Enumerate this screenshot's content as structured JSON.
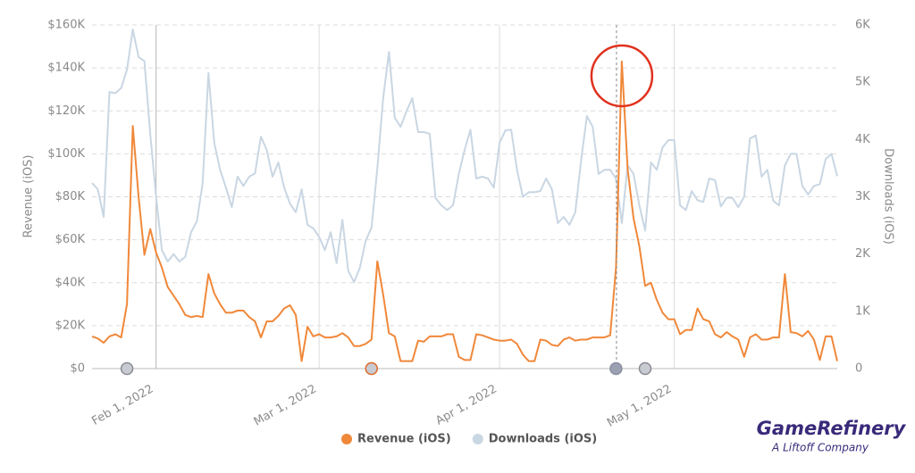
{
  "chart_data": {
    "type": "line",
    "ylabel": "Revenue (iOS)",
    "y2label": "Downloads (iOS)",
    "ylim": [
      0,
      160000
    ],
    "yticks": [
      {
        "value": 0,
        "label": "$0"
      },
      {
        "value": 20000,
        "label": "$20K"
      },
      {
        "value": 40000,
        "label": "$40K"
      },
      {
        "value": 60000,
        "label": "$60K"
      },
      {
        "value": 80000,
        "label": "$80K"
      },
      {
        "value": 100000,
        "label": "$100K"
      },
      {
        "value": 120000,
        "label": "$120K"
      },
      {
        "value": 140000,
        "label": "$140K"
      },
      {
        "value": 160000,
        "label": "$160K"
      }
    ],
    "y2lim": [
      0,
      6000
    ],
    "y2ticks": [
      0,
      {
        "value": 1000,
        "label": "1K"
      },
      {
        "value": 2000,
        "label": "2K"
      },
      {
        "value": 3000,
        "label": "3K"
      },
      {
        "value": 4000,
        "label": "4K"
      },
      {
        "value": 5000,
        "label": "5K"
      },
      {
        "value": 6000,
        "label": "6K"
      }
    ],
    "xlim": [
      "2022-01-21",
      "2022-05-29"
    ],
    "xticks": [
      {
        "value": "2022-02-01",
        "label": "Feb 1, 2022"
      },
      {
        "value": "2022-03-01",
        "label": "Mar 1, 2022"
      },
      {
        "value": "2022-04-01",
        "label": "Apr 1, 2022"
      },
      {
        "value": "2022-05-01",
        "label": "May 1, 2022"
      }
    ],
    "grid": true,
    "x": [
      "2022-01-21",
      "2022-01-22",
      "2022-01-23",
      "2022-01-24",
      "2022-01-25",
      "2022-01-26",
      "2022-01-27",
      "2022-01-28",
      "2022-01-29",
      "2022-01-30",
      "2022-01-31",
      "2022-02-01",
      "2022-02-02",
      "2022-02-03",
      "2022-02-04",
      "2022-02-05",
      "2022-02-06",
      "2022-02-07",
      "2022-02-08",
      "2022-02-09",
      "2022-02-10",
      "2022-02-11",
      "2022-02-12",
      "2022-02-13",
      "2022-02-14",
      "2022-02-15",
      "2022-02-16",
      "2022-02-17",
      "2022-02-18",
      "2022-02-19",
      "2022-02-20",
      "2022-02-21",
      "2022-02-22",
      "2022-02-23",
      "2022-02-24",
      "2022-02-25",
      "2022-02-26",
      "2022-02-27",
      "2022-02-28",
      "2022-03-01",
      "2022-03-02",
      "2022-03-03",
      "2022-03-04",
      "2022-03-05",
      "2022-03-06",
      "2022-03-07",
      "2022-03-08",
      "2022-03-09",
      "2022-03-10",
      "2022-03-11",
      "2022-03-12",
      "2022-03-13",
      "2022-03-14",
      "2022-03-15",
      "2022-03-16",
      "2022-03-17",
      "2022-03-18",
      "2022-03-19",
      "2022-03-20",
      "2022-03-21",
      "2022-03-22",
      "2022-03-23",
      "2022-03-24",
      "2022-03-25",
      "2022-03-26",
      "2022-03-27",
      "2022-03-28",
      "2022-03-29",
      "2022-03-30",
      "2022-03-31",
      "2022-04-01",
      "2022-04-02",
      "2022-04-03",
      "2022-04-04",
      "2022-04-05",
      "2022-04-06",
      "2022-04-07",
      "2022-04-08",
      "2022-04-09",
      "2022-04-10",
      "2022-04-11",
      "2022-04-12",
      "2022-04-13",
      "2022-04-14",
      "2022-04-15",
      "2022-04-16",
      "2022-04-17",
      "2022-04-18",
      "2022-04-19",
      "2022-04-20",
      "2022-04-21",
      "2022-04-22",
      "2022-04-23",
      "2022-04-24",
      "2022-04-25",
      "2022-04-26",
      "2022-04-27",
      "2022-04-28",
      "2022-04-29",
      "2022-04-30",
      "2022-05-01",
      "2022-05-02",
      "2022-05-03",
      "2022-05-04",
      "2022-05-05",
      "2022-05-06",
      "2022-05-07",
      "2022-05-08",
      "2022-05-09",
      "2022-05-10",
      "2022-05-11",
      "2022-05-12",
      "2022-05-13",
      "2022-05-14",
      "2022-05-15",
      "2022-05-16",
      "2022-05-17",
      "2022-05-18",
      "2022-05-19",
      "2022-05-20",
      "2022-05-21",
      "2022-05-22",
      "2022-05-23",
      "2022-05-24",
      "2022-05-25",
      "2022-05-26",
      "2022-05-27",
      "2022-05-28",
      "2022-05-29"
    ],
    "series": [
      {
        "name": "Downloads (iOS)",
        "color": "#c9d6e3",
        "axis": "y2",
        "values": [
          3240,
          3130,
          2650,
          4830,
          4810,
          4900,
          5220,
          5920,
          5440,
          5370,
          4090,
          3000,
          2070,
          1870,
          2000,
          1870,
          1950,
          2380,
          2570,
          3240,
          5160,
          3940,
          3470,
          3160,
          2820,
          3350,
          3190,
          3350,
          3410,
          4050,
          3820,
          3350,
          3600,
          3160,
          2880,
          2730,
          3130,
          2510,
          2450,
          2300,
          2070,
          2380,
          1840,
          2600,
          1710,
          1510,
          1760,
          2230,
          2460,
          3500,
          4720,
          5530,
          4380,
          4220,
          4490,
          4720,
          4130,
          4130,
          4100,
          2980,
          2850,
          2770,
          2850,
          3400,
          3820,
          4170,
          3320,
          3350,
          3320,
          3160,
          3940,
          4160,
          4170,
          3470,
          3000,
          3080,
          3080,
          3100,
          3320,
          3130,
          2540,
          2650,
          2510,
          2730,
          3630,
          4410,
          4220,
          3400,
          3470,
          3470,
          3320,
          2540,
          3550,
          3400,
          2850,
          2410,
          3600,
          3470,
          3860,
          3990,
          3990,
          2850,
          2770,
          3100,
          2940,
          2910,
          3320,
          3290,
          2830,
          2980,
          2980,
          2820,
          3000,
          4020,
          4070,
          3350,
          3470,
          2930,
          2850,
          3550,
          3750,
          3750,
          3190,
          3040,
          3190,
          3220,
          3660,
          3750,
          3360
        ]
      },
      {
        "name": "Revenue (iOS)",
        "color": "#f0883a",
        "values": [
          15000,
          14000,
          12000,
          15000,
          16000,
          14500,
          30000,
          113000,
          80000,
          53000,
          65000,
          54000,
          47000,
          38000,
          34000,
          30000,
          25000,
          24000,
          24500,
          24000,
          44000,
          35000,
          30000,
          26000,
          26000,
          27000,
          27000,
          24000,
          22000,
          14500,
          22000,
          22000,
          24500,
          28000,
          29500,
          25000,
          3500,
          19500,
          15000,
          16000,
          14500,
          14500,
          15000,
          16500,
          14500,
          10500,
          10500,
          11500,
          13500,
          50000,
          34500,
          16500,
          15000,
          3500,
          3500,
          3500,
          13000,
          12500,
          15000,
          15000,
          15000,
          16000,
          16000,
          5500,
          4000,
          4000,
          16000,
          15500,
          14500,
          13500,
          13000,
          13000,
          13500,
          11500,
          6500,
          3500,
          3500,
          13500,
          13000,
          11000,
          10500,
          13500,
          14500,
          13000,
          13500,
          13500,
          14500,
          14500,
          14500,
          15500,
          47000,
          143000,
          93000,
          70000,
          57000,
          38500,
          40000,
          32000,
          26000,
          23000,
          23000,
          16000,
          18000,
          18000,
          28000,
          23000,
          22000,
          16000,
          14500,
          17000,
          15000,
          13500,
          5500,
          14500,
          16000,
          13500,
          13500,
          14500,
          14500,
          44000,
          17000,
          16500,
          15000,
          17500,
          13500,
          4000,
          15000,
          15000,
          3500
        ]
      }
    ],
    "events": [
      {
        "x": "2022-01-27",
        "fill": "#c9cbd3",
        "stroke": "#8a8a95"
      },
      {
        "x": "2022-03-10",
        "fill": "#c9cbd3",
        "stroke": "#e0692a"
      },
      {
        "x": "2022-04-21",
        "fill": "#9aa1b3",
        "stroke": "#8a8fa0"
      },
      {
        "x": "2022-04-26",
        "fill": "#c9cbd3",
        "stroke": "#8a8a95"
      }
    ],
    "highlight": {
      "x": "2022-04-22",
      "color": "#e0321e"
    },
    "branding": {
      "name": "GameRefinery",
      "tagline": "A Liftoff Company",
      "color": "#3a2a7a"
    }
  }
}
